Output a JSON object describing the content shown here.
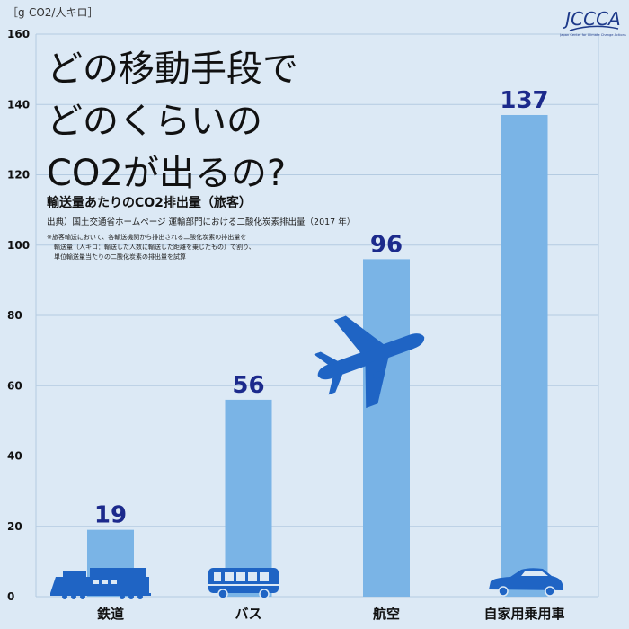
{
  "header": {
    "unit_label": "［g-CO2/人キロ］",
    "logo_text": "JCCCA",
    "logo_caption": "Japan Center for Climate Change Actions"
  },
  "headline": {
    "line1": "どの移動手段で",
    "line2": "どのくらいの",
    "line3": "CO2が出るの?"
  },
  "notes": {
    "subtitle": "輸送量あたりのCO2排出量（旅客）",
    "source": "出典）国土交通省ホームページ 運輸部門における二酸化炭素排出量（2017 年）",
    "note1": "※旅客輸送において、各輸送機関から排出される二酸化炭素の排出量を",
    "note2": "輸送量（人キロ：輸送した人数に輸送した距離を乗じたもの）で割り、",
    "note3": "単位輸送量当たりの二酸化炭素の排出量を試算"
  },
  "colors": {
    "background": "#dce9f5",
    "bar": "#7ab4e6",
    "value_label": "#1c2a8c",
    "icon": "#1f64c4",
    "grid": "#b4cbe1"
  },
  "chart_data": {
    "type": "bar",
    "categories": [
      "鉄道",
      "バス",
      "航空",
      "自家用乗用車"
    ],
    "values": [
      19,
      56,
      96,
      137
    ],
    "title": "輸送量あたりのCO2排出量（旅客）",
    "ylabel": "［g-CO2/人キロ］",
    "ylim": [
      0,
      160
    ],
    "yticks": [
      0,
      20,
      40,
      60,
      80,
      100,
      120,
      140,
      160
    ],
    "grid": true,
    "legend": "none",
    "icons": [
      "train-icon",
      "bus-icon",
      "airplane-icon",
      "car-icon"
    ]
  }
}
